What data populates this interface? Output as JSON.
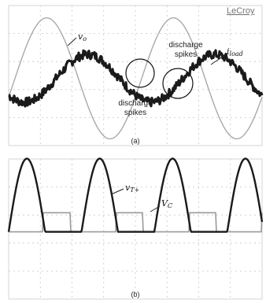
{
  "brand": "LeCroy",
  "chart_data": [
    {
      "type": "line",
      "panel_label": "(a)",
      "grid": true,
      "series": [
        {
          "name": "v_o",
          "color": "#a9a9a9",
          "shape": "sine",
          "period_div": 4.0,
          "phase_div": 0.2,
          "amplitude_div": 1.9,
          "offset_div": 0
        },
        {
          "name": "i_load",
          "color": "#1a1a1a",
          "shape": "sine",
          "period_div": 4.0,
          "phase_div": 1.5,
          "amplitude_div": 0.75,
          "offset_div": 0,
          "noise": true
        }
      ],
      "symbols": {
        "vo_main": "v",
        "vo_sub": "o",
        "i_main": "i",
        "i_sub": "load"
      },
      "annotations": [
        "discharge",
        "spikes",
        "discharge",
        "spikes"
      ]
    },
    {
      "type": "line",
      "panel_label": "(b)",
      "grid": true,
      "series": [
        {
          "name": "v_T+",
          "color": "#1a1a1a",
          "shape": "half-sine pulses",
          "period_div": 2.3,
          "pulse_width_div": 1.15,
          "amplitude_div": 2.3
        },
        {
          "name": "V_C",
          "color": "#9a9a9a",
          "shape": "rectangular pulses",
          "period_div": 2.3,
          "pulse_width_div": 0.85,
          "amplitude_div": 0.6
        }
      ],
      "symbols": {
        "vt_main": "v",
        "vt_sub": "T+",
        "vc_main": "V",
        "vc_sub": "C"
      }
    }
  ]
}
